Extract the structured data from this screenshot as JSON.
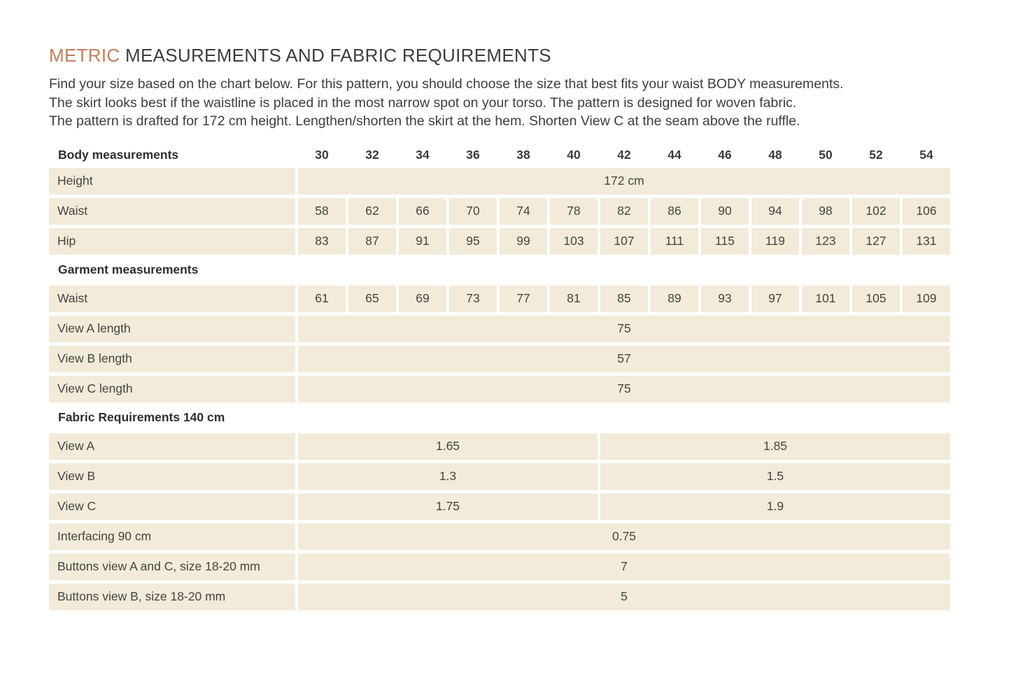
{
  "header": {
    "title_accent": "METRIC",
    "title_rest": "MEASUREMENTS AND FABRIC REQUIREMENTS",
    "intro": [
      "Find your size based on the chart below. For this pattern, you should choose the size that best fits your waist BODY measurements.",
      "The skirt looks best if the waistline is placed in the most narrow spot on your torso. The pattern is designed for woven fabric.",
      "The pattern is drafted for 172 cm height. Lengthen/shorten the skirt at the hem. Shorten View C at the seam above the ruffle."
    ]
  },
  "table": {
    "header_label": "Body measurements",
    "sizes": [
      "30",
      "32",
      "34",
      "36",
      "38",
      "40",
      "42",
      "44",
      "46",
      "48",
      "50",
      "52",
      "54"
    ],
    "rows": {
      "height": {
        "label": "Height",
        "value": "172 cm"
      },
      "body_waist": {
        "label": "Waist",
        "values": [
          "58",
          "62",
          "66",
          "70",
          "74",
          "78",
          "82",
          "86",
          "90",
          "94",
          "98",
          "102",
          "106"
        ]
      },
      "hip": {
        "label": "Hip",
        "values": [
          "83",
          "87",
          "91",
          "95",
          "99",
          "103",
          "107",
          "111",
          "115",
          "119",
          "123",
          "127",
          "131"
        ]
      },
      "garment_section": "Garment measurements",
      "garment_waist": {
        "label": "Waist",
        "values": [
          "61",
          "65",
          "69",
          "73",
          "77",
          "81",
          "85",
          "89",
          "93",
          "97",
          "101",
          "105",
          "109"
        ]
      },
      "view_a_length": {
        "label": "View A length",
        "value": "75"
      },
      "view_b_length": {
        "label": "View B length",
        "value": "57"
      },
      "view_c_length": {
        "label": "View C length",
        "value": "75"
      },
      "fabric_section": "Fabric Requirements 140 cm",
      "fabric_view_a": {
        "label": "View A",
        "left": "1.65",
        "right": "1.85"
      },
      "fabric_view_b": {
        "label": "View B",
        "left": "1.3",
        "right": "1.5"
      },
      "fabric_view_c": {
        "label": "View C",
        "left": "1.75",
        "right": "1.9"
      },
      "interfacing": {
        "label": "Interfacing 90 cm",
        "value": "0.75"
      },
      "buttons_ac": {
        "label": "Buttons view A and C, size 18-20 mm",
        "value": "7"
      },
      "buttons_b": {
        "label": "Buttons view B, size 18-20 mm",
        "value": "5"
      }
    }
  },
  "colors": {
    "accent": "#c47c5a",
    "cell_background": "#f2ebd9",
    "text": "#3d3d3b",
    "page_background": "#ffffff"
  }
}
